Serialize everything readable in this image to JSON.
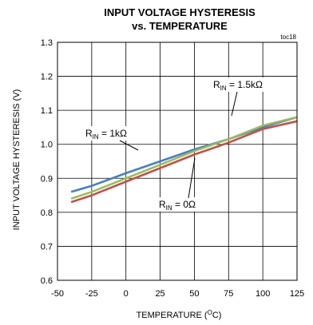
{
  "chart_data": {
    "type": "line",
    "title": "INPUT VOLTAGE HYSTERESIS",
    "subtitle": "vs. TEMPERATURE",
    "code": "toc18",
    "xlabel": {
      "main": "TEMPERATURE (",
      "sup": "O",
      "tail": "C)"
    },
    "ylabel": "INPUT VOLTAGE HYSTERESIS (V)",
    "xlim": [
      -50,
      125
    ],
    "ylim": [
      0.6,
      1.3
    ],
    "xticks": [
      -50,
      -25,
      0,
      25,
      50,
      75,
      100,
      125
    ],
    "yticks": [
      "0.6",
      "0.7",
      "0.8",
      "0.9",
      "1.0",
      "1.1",
      "1.2",
      "1.3"
    ],
    "grid": true,
    "series": [
      {
        "name": "R_IN = 1kΩ",
        "color": "#4a7fc0",
        "x": [
          -40,
          -25,
          0,
          25,
          50,
          75,
          100,
          125
        ],
        "y": [
          0.86,
          0.878,
          0.915,
          0.95,
          0.985,
          1.015,
          1.05,
          1.08
        ]
      },
      {
        "name": "R_IN = 1.5kΩ",
        "color": "#9bbb59",
        "x": [
          -40,
          -25,
          0,
          25,
          50,
          75,
          100,
          125
        ],
        "y": [
          0.84,
          0.86,
          0.9,
          0.94,
          0.98,
          1.015,
          1.055,
          1.08
        ]
      },
      {
        "name": "R_IN = 0Ω",
        "color": "#c0504d",
        "x": [
          -40,
          -25,
          0,
          25,
          50,
          75,
          100,
          125
        ],
        "y": [
          0.83,
          0.85,
          0.89,
          0.93,
          0.97,
          1.005,
          1.045,
          1.068
        ]
      }
    ],
    "annotations": [
      {
        "main": "R",
        "sub": "IN",
        "tail": " = 1kΩ"
      },
      {
        "main": "R",
        "sub": "IN",
        "tail": " = 1.5kΩ"
      },
      {
        "main": "R",
        "sub": "IN",
        "tail": " = 0Ω"
      }
    ]
  }
}
